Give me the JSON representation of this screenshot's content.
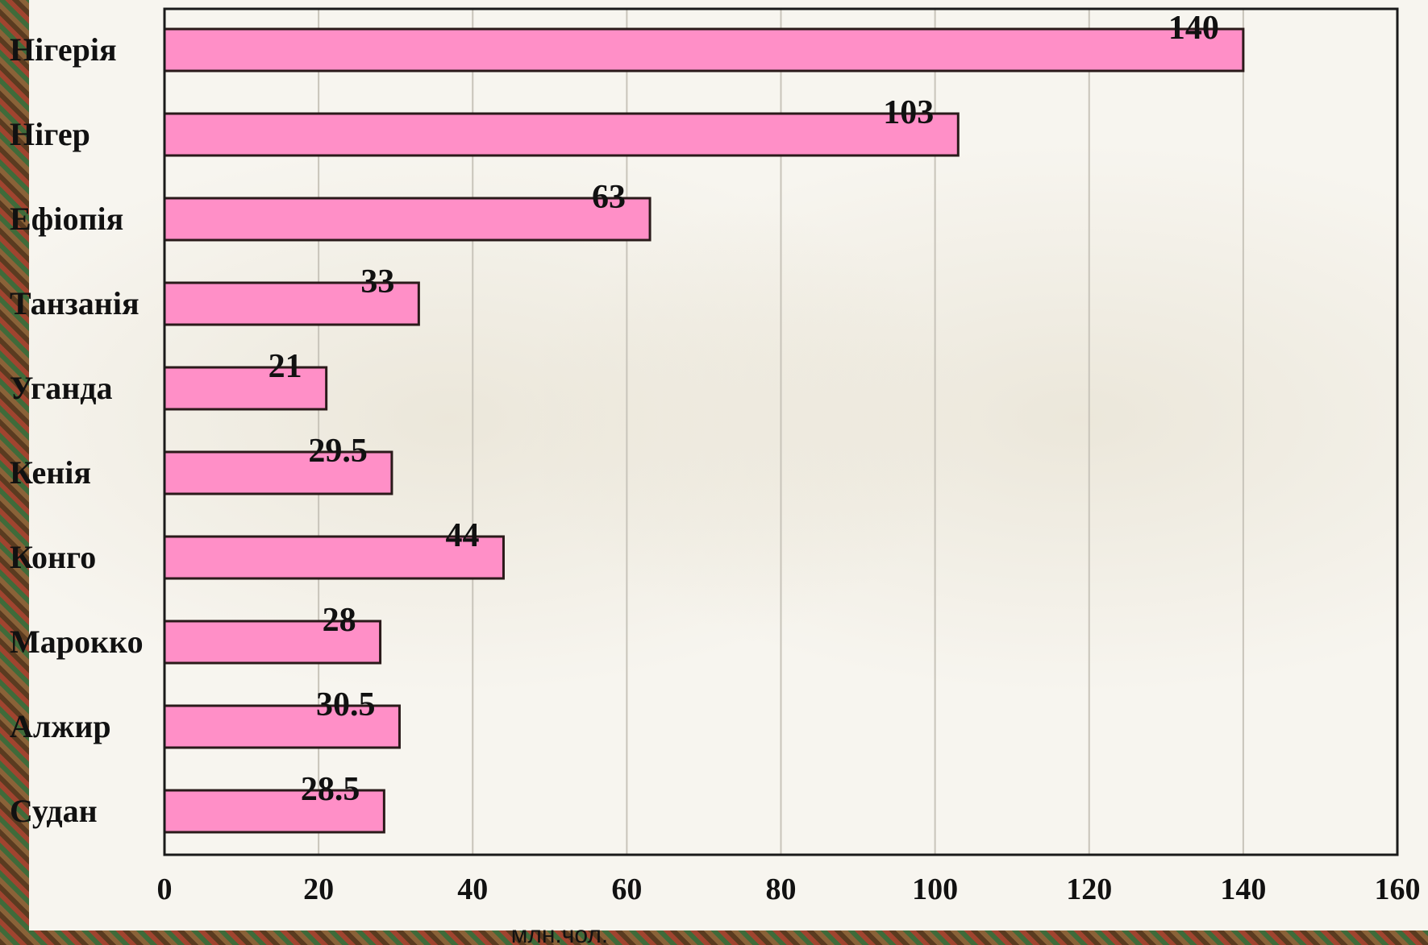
{
  "chart_data": {
    "type": "bar",
    "orientation": "horizontal",
    "categories": [
      "Нігерія",
      "Нігер",
      "Ефіопія",
      "Танзанія",
      "Уганда",
      "Кенія",
      "Конго",
      "Марокко",
      "Алжир",
      "Судан"
    ],
    "values": [
      140,
      103,
      63,
      33,
      21,
      29.5,
      44,
      28,
      30.5,
      28.5
    ],
    "value_labels": [
      "140",
      "103",
      "63",
      "33",
      "21",
      "29.5",
      "44",
      "28",
      "30.5",
      "28.5"
    ],
    "xlabel": "млн.чол.",
    "ylabel": "",
    "xlim": [
      0,
      160
    ],
    "x_ticks": [
      "0",
      "20",
      "40",
      "60",
      "80",
      "100",
      "120",
      "140",
      "160"
    ],
    "grid": true,
    "legend": "none",
    "bar_color": "#ff8fc7"
  }
}
